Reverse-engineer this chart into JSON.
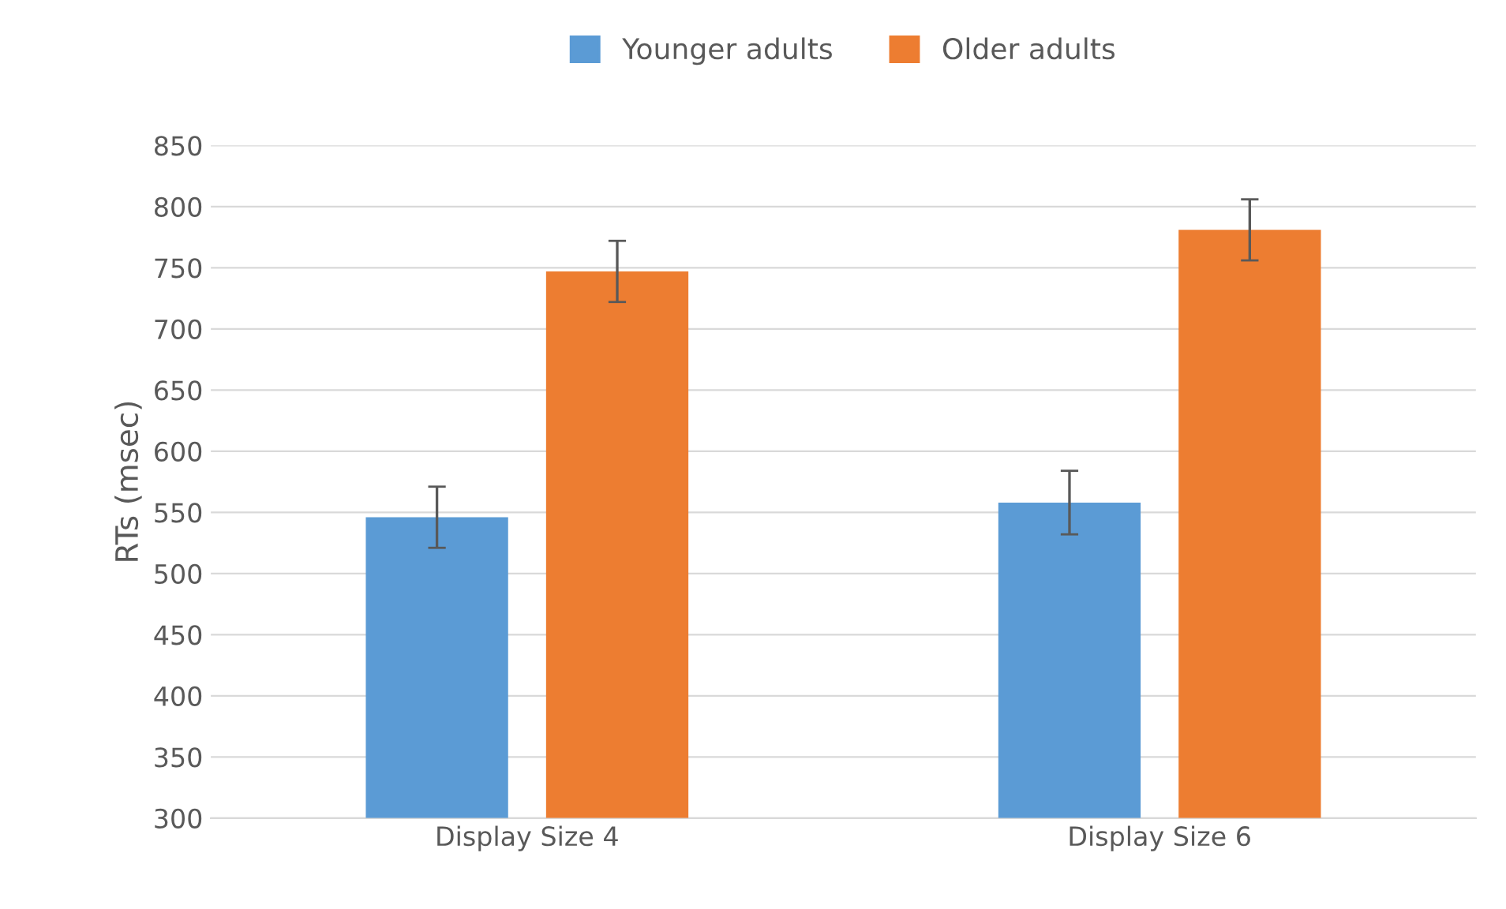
{
  "chart_data": {
    "type": "bar",
    "ylabel": "RTs (msec)",
    "categories": [
      "Display Size 4",
      "Display Size 6"
    ],
    "series": [
      {
        "name": "Younger adults",
        "color": "#5b9bd5",
        "values": [
          546,
          558
        ],
        "errors": [
          25,
          26
        ]
      },
      {
        "name": "Older adults",
        "color": "#ed7d31",
        "values": [
          747,
          781
        ],
        "errors": [
          25,
          25
        ]
      }
    ],
    "ylim": [
      300,
      850
    ],
    "yticks": [
      300,
      350,
      400,
      450,
      500,
      550,
      600,
      650,
      700,
      750,
      800,
      850
    ],
    "grid": "y",
    "legend": "top"
  }
}
